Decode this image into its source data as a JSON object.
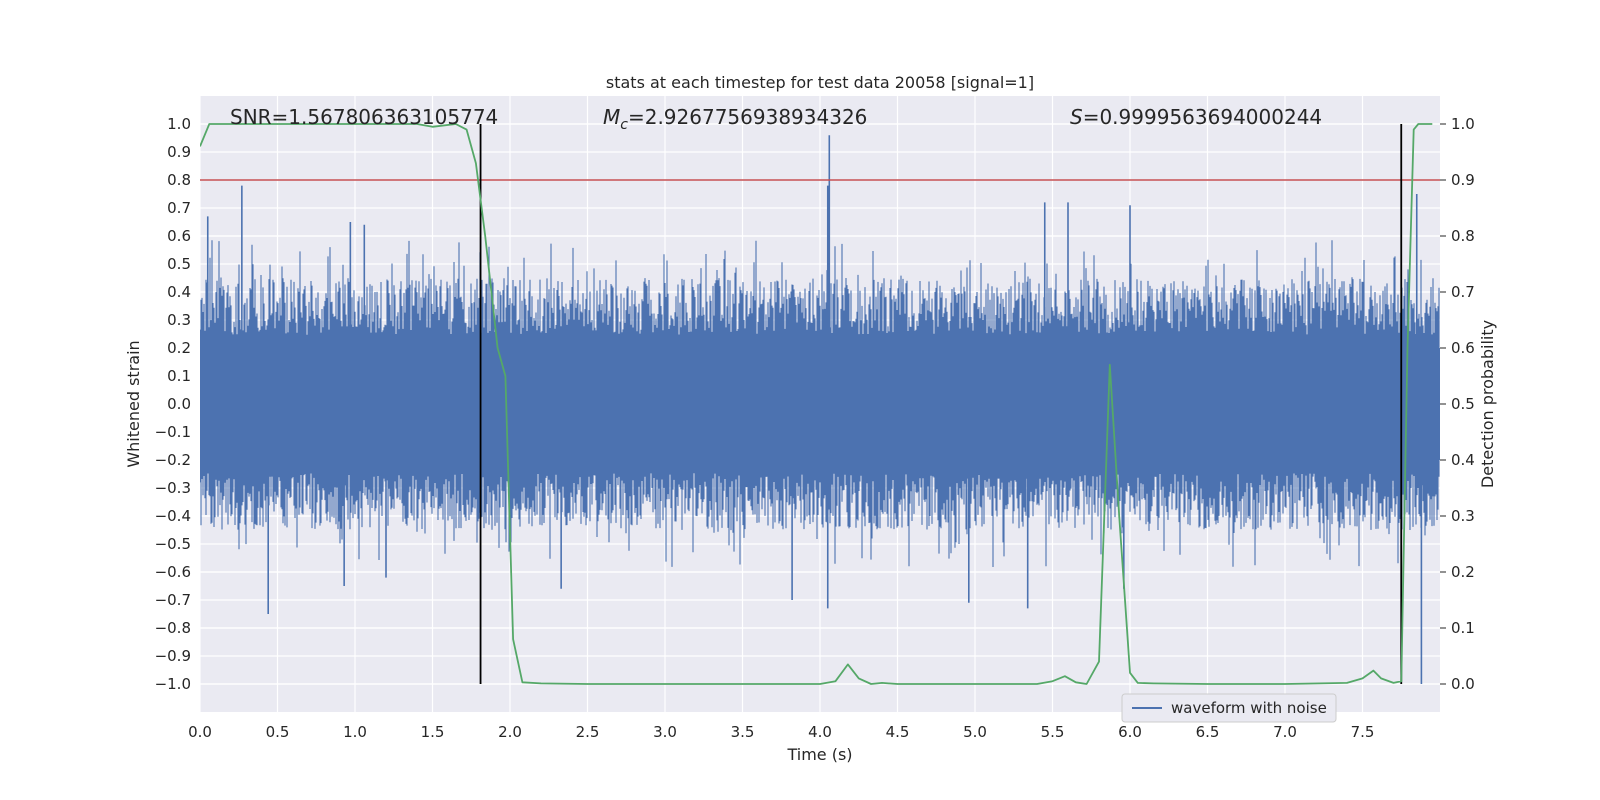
{
  "chart_data": {
    "type": "line",
    "title": "stats at each timestep for test data 20058 [signal=1]",
    "xlabel": "Time (s)",
    "ylabel": "Whitened strain",
    "y2label": "Detection probability",
    "xlim": [
      0.0,
      8.0
    ],
    "ylim": [
      -1.1,
      1.1
    ],
    "y2lim": [
      -0.05,
      1.05
    ],
    "grid": true,
    "x_ticks": [
      "0.0",
      "0.5",
      "1.0",
      "1.5",
      "2.0",
      "2.5",
      "3.0",
      "3.5",
      "4.0",
      "4.5",
      "5.0",
      "5.5",
      "6.0",
      "6.5",
      "7.0",
      "7.5"
    ],
    "y_ticks": [
      "1.0",
      "0.9",
      "0.8",
      "0.7",
      "0.6",
      "0.5",
      "0.4",
      "0.3",
      "0.2",
      "0.1",
      "0.0",
      "−0.1",
      "−0.2",
      "−0.3",
      "−0.4",
      "−0.5",
      "−0.6",
      "−0.7",
      "−0.8",
      "−0.9",
      "−1.0"
    ],
    "y2_ticks": [
      "1.0",
      "0.9",
      "0.8",
      "0.7",
      "0.6",
      "0.5",
      "0.4",
      "0.3",
      "0.2",
      "0.1",
      "0.0"
    ],
    "annotations": {
      "snr": "SNR=1.567806363105774",
      "mc_symbol": "M",
      "mc_sub": "c",
      "mc_value": "=2.9267756938934326",
      "s_symbol": "S",
      "s_value": "=0.9999563694000244"
    },
    "legend": {
      "label": "waveform with noise",
      "placement": "lower-center"
    },
    "threshold_probability": 0.9,
    "vertical_lines_x": [
      1.81,
      7.75
    ],
    "waveform_summary": {
      "name": "waveform with noise",
      "color": "#4c72b0",
      "typical_abs_max": 0.45,
      "spikes": [
        {
          "x": 0.27,
          "y": 0.78
        },
        {
          "x": 0.05,
          "y": 0.67
        },
        {
          "x": 0.97,
          "y": 0.65
        },
        {
          "x": 1.06,
          "y": 0.64
        },
        {
          "x": 4.06,
          "y": 0.96
        },
        {
          "x": 4.05,
          "y": 0.78
        },
        {
          "x": 5.6,
          "y": 0.72
        },
        {
          "x": 6.0,
          "y": 0.71
        },
        {
          "x": 5.45,
          "y": 0.72
        },
        {
          "x": 7.85,
          "y": 0.75
        },
        {
          "x": 0.44,
          "y": -0.75
        },
        {
          "x": 0.93,
          "y": -0.65
        },
        {
          "x": 4.05,
          "y": -0.73
        },
        {
          "x": 4.96,
          "y": -0.71
        },
        {
          "x": 5.34,
          "y": -0.73
        },
        {
          "x": 5.96,
          "y": -0.66
        },
        {
          "x": 7.88,
          "y": -1.0
        },
        {
          "x": 1.2,
          "y": -0.62
        },
        {
          "x": 3.82,
          "y": -0.7
        },
        {
          "x": 2.33,
          "y": -0.66
        }
      ]
    },
    "probability_series": {
      "name": "Detection probability",
      "color": "#55a868",
      "x": [
        0.0,
        0.06,
        0.2,
        0.5,
        1.0,
        1.4,
        1.5,
        1.65,
        1.72,
        1.78,
        1.84,
        1.92,
        1.97,
        2.02,
        2.08,
        2.2,
        2.5,
        3.0,
        3.5,
        4.0,
        4.1,
        4.18,
        4.25,
        4.33,
        4.4,
        4.5,
        5.0,
        5.4,
        5.5,
        5.58,
        5.65,
        5.72,
        5.8,
        5.87,
        5.93,
        6.0,
        6.05,
        6.15,
        6.5,
        7.0,
        7.4,
        7.5,
        7.57,
        7.62,
        7.7,
        7.75,
        7.79,
        7.83,
        7.86,
        7.9,
        7.95
      ],
      "y": [
        0.96,
        1.0,
        1.0,
        1.0,
        1.0,
        1.0,
        0.995,
        1.0,
        0.99,
        0.93,
        0.8,
        0.6,
        0.55,
        0.08,
        0.003,
        0.001,
        0.0,
        0.0,
        0.0,
        0.0,
        0.005,
        0.035,
        0.01,
        0.0,
        0.002,
        0.0,
        0.0,
        0.0,
        0.005,
        0.014,
        0.003,
        0.0,
        0.04,
        0.57,
        0.3,
        0.02,
        0.002,
        0.001,
        0.0,
        0.0,
        0.002,
        0.01,
        0.024,
        0.01,
        0.002,
        0.005,
        0.6,
        0.99,
        1.0,
        1.0,
        1.0
      ]
    }
  }
}
